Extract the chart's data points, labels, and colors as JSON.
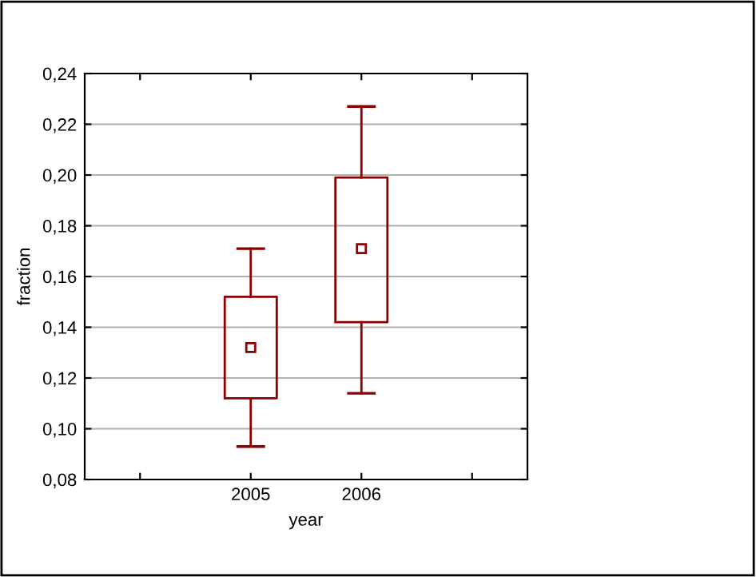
{
  "chart_data": {
    "type": "box",
    "xlabel": "year",
    "ylabel": "fraction",
    "categories": [
      null,
      "2005",
      "2006",
      null
    ],
    "boxes": [
      null,
      {
        "low": 0.093,
        "q1": 0.112,
        "median": 0.132,
        "q3": 0.152,
        "high": 0.171
      },
      {
        "low": 0.114,
        "q1": 0.142,
        "median": 0.171,
        "q3": 0.199,
        "high": 0.227
      },
      null
    ],
    "color": "#8b0000",
    "ylim": [
      0.08,
      0.24
    ],
    "yticks": [
      {
        "value": 0.08,
        "label": "0,08"
      },
      {
        "value": 0.1,
        "label": "0,10"
      },
      {
        "value": 0.12,
        "label": "0,12"
      },
      {
        "value": 0.14,
        "label": "0,14"
      },
      {
        "value": 0.16,
        "label": "0,16"
      },
      {
        "value": 0.18,
        "label": "0,18"
      },
      {
        "value": 0.2,
        "label": "0,20"
      },
      {
        "value": 0.22,
        "label": "0,22"
      },
      {
        "value": 0.24,
        "label": "0,24"
      }
    ],
    "grid": "y"
  }
}
